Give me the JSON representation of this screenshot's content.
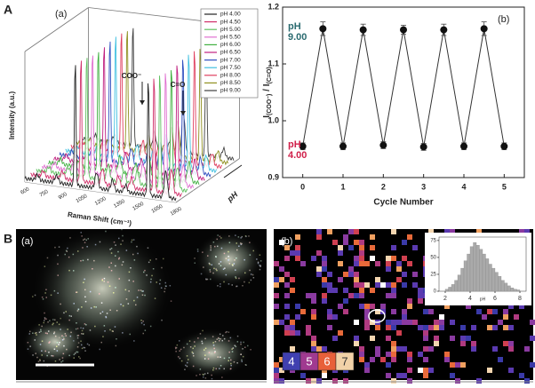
{
  "panel_labels": [
    "A",
    "B"
  ],
  "spectra": {
    "label": "(a)",
    "y_label": "Intensity (a.u.)",
    "x_label": "Raman Shift (cm⁻¹)",
    "z_label": "pH",
    "x_ticks": [
      "600",
      "750",
      "900",
      "1050",
      "1200",
      "1350",
      "1500",
      "1650",
      "1800"
    ],
    "annotations": [
      "COO⁻",
      "C=O"
    ],
    "legend": [
      "pH 4.00",
      "pH 4.50",
      "pH 5.00",
      "pH 5.50",
      "pH 6.00",
      "pH 6.50",
      "pH 7.00",
      "pH 7.50",
      "pH 8.00",
      "pH 8.50",
      "pH 9.00"
    ],
    "colors": [
      "#222222",
      "#d0306a",
      "#60c060",
      "#e070d0",
      "#40b040",
      "#c02080",
      "#3050c0",
      "#40c0e0",
      "#e04060",
      "#909020",
      "#404040"
    ]
  },
  "chart_data": [
    {
      "type": "line",
      "panel_label": "(b)",
      "x_label": "Cycle Number",
      "y_label": [
        "I",
        "(COO⁻)",
        " / I",
        "(C=O)"
      ],
      "x": [
        0,
        0.5,
        1,
        1.5,
        2,
        2.5,
        3,
        3.5,
        4,
        4.5,
        5
      ],
      "series": [
        {
          "name": "ratio",
          "color": "#333333",
          "values": [
            0.955,
            1.162,
            0.955,
            1.16,
            0.957,
            1.16,
            0.954,
            1.16,
            0.955,
            1.162,
            0.955
          ],
          "errors": [
            0.006,
            0.012,
            0.006,
            0.01,
            0.006,
            0.008,
            0.006,
            0.01,
            0.006,
            0.012,
            0.006
          ]
        }
      ],
      "xlim": [
        -0.5,
        5.5
      ],
      "xticks": [
        0,
        1,
        2,
        3,
        4,
        5
      ],
      "ylim": [
        0.9,
        1.2
      ],
      "yticks": [
        0.9,
        {
          "value": 1,
          "label": "1.0"
        },
        1.1,
        1.2
      ],
      "annotations": [
        {
          "lines": [
            "pH",
            "9.00"
          ],
          "color": "#2b6b70"
        },
        {
          "lines": [
            "pH",
            "4.00"
          ],
          "color": "#d0204a"
        }
      ]
    },
    {
      "type": "histogram",
      "x_label": "pH",
      "color": "#aaaaaa",
      "bins": [
        2,
        2.25,
        2.5,
        2.75,
        3,
        3.25,
        3.5,
        3.75,
        4,
        4.25,
        4.5,
        4.75,
        5,
        5.25,
        5.5,
        5.75,
        6,
        6.25,
        6.5,
        6.75,
        7,
        7.25,
        7.5,
        7.75,
        8
      ],
      "values": [
        3,
        6,
        10,
        16,
        24,
        34,
        45,
        55,
        66,
        72,
        68,
        62,
        55,
        48,
        40,
        34,
        28,
        22,
        16,
        12,
        8,
        5,
        3,
        2
      ],
      "xlim": [
        1.5,
        8.5
      ],
      "xticks": [
        2,
        4,
        6,
        8
      ],
      "ylim": [
        0,
        80
      ],
      "yticks": [
        0,
        25,
        50,
        75
      ]
    }
  ],
  "image_a": {
    "label": "(a)"
  },
  "image_b": {
    "label": "(b)",
    "scale": [
      {
        "label": "4",
        "color": "#4040b0"
      },
      {
        "label": "5",
        "color": "#a03a90"
      },
      {
        "label": "6",
        "color": "#e8603a"
      },
      {
        "label": "7",
        "color": "#f2d2a8"
      }
    ]
  }
}
